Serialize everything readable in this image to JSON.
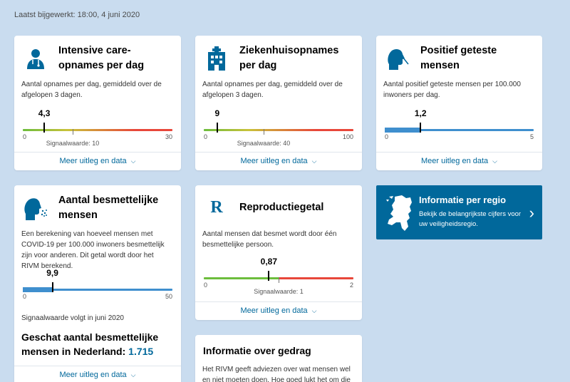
{
  "updated": "Laatst bijgewerkt: 18:00, 4 juni 2020",
  "colors": {
    "accent": "#01689b",
    "bar_blue": "#3f8fce",
    "green": "#6cbd3c",
    "red": "#e8473a"
  },
  "more_label": "Meer uitleg en data",
  "ic": {
    "icon": "doctor-icon",
    "title": "Intensive care-opnames per dag",
    "desc": "Aantal opnames per dag, gemiddeld over de afgelopen 3 dagen.",
    "value": "4,3",
    "value_num": 4.3,
    "min": "0",
    "max": "30",
    "max_num": 30,
    "signal": "Signaalwaarde: 10",
    "signal_num": 10
  },
  "hosp": {
    "icon": "hospital-icon",
    "title": "Ziekenhuisopnames per dag",
    "desc": "Aantal opnames per dag, gemiddeld over de afgelopen 3 dagen.",
    "value": "9",
    "value_num": 9,
    "min": "0",
    "max": "100",
    "max_num": 100,
    "signal": "Signaalwaarde: 40",
    "signal_num": 40
  },
  "pos": {
    "icon": "swab-test-icon",
    "title": "Positief geteste mensen",
    "desc": "Aantal positief geteste mensen per 100.000 inwoners per dag.",
    "value": "1,2",
    "value_num": 1.2,
    "min": "0",
    "max": "5",
    "max_num": 5
  },
  "inf": {
    "icon": "coughing-person-icon",
    "title": "Aantal besmettelijke mensen",
    "desc": "Een berekening van hoeveel mensen met COVID-19 per 100.000 inwoners besmettelijk zijn voor anderen. Dit getal wordt door het RIVM berekend.",
    "value": "9,9",
    "value_num": 9.9,
    "min": "0",
    "max": "50",
    "max_num": 50,
    "note": "Signaalwaarde volgt in juni 2020",
    "estimate_label": "Geschat aantal besmettelijke mensen in Nederland:",
    "estimate_value": "1.715"
  },
  "r": {
    "icon": "r-letter-icon",
    "icon_text": "R",
    "title": "Reproductiegetal",
    "desc": "Aantal mensen dat besmet wordt door één besmettelijke persoon.",
    "value": "0,87",
    "value_num": 0.87,
    "min": "0",
    "max": "2",
    "max_num": 2,
    "signal": "Signaalwaarde: 1",
    "signal_num": 1
  },
  "behav": {
    "title": "Informatie over gedrag",
    "desc": "Het RIVM geeft adviezen over wat mensen wel en niet moeten doen. Hoe goed lukt het om die"
  },
  "region": {
    "icon": "netherlands-map-icon",
    "title": "Informatie per regio",
    "subtitle": "Bekijk de belangrijkste cijfers voor uw veiligheidsregio."
  }
}
